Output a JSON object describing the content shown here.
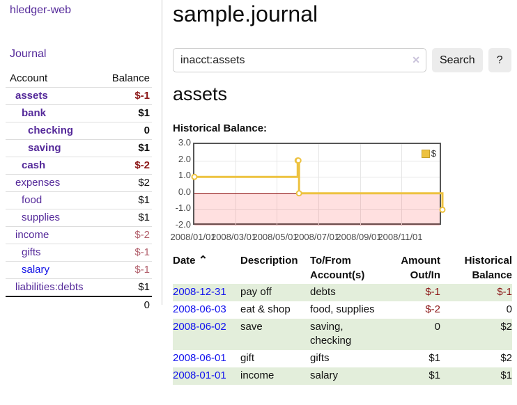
{
  "sidebar": {
    "app_title": "hledger-web",
    "journal_label": "Journal",
    "accounts_header": {
      "account": "Account",
      "balance": "Balance"
    },
    "accounts": [
      {
        "label": "assets",
        "depth": 0,
        "bold": true,
        "balance": "$-1",
        "balance_style": "negative",
        "link_style": "visited"
      },
      {
        "label": "bank",
        "depth": 1,
        "bold": true,
        "balance": "$1",
        "balance_style": "normal",
        "link_style": "visited"
      },
      {
        "label": "checking",
        "depth": 2,
        "bold": true,
        "balance": "0",
        "balance_style": "normal",
        "link_style": "visited"
      },
      {
        "label": "saving",
        "depth": 2,
        "bold": true,
        "balance": "$1",
        "balance_style": "normal",
        "link_style": "visited"
      },
      {
        "label": "cash",
        "depth": 1,
        "bold": true,
        "balance": "$-2",
        "balance_style": "negative",
        "link_style": "visited"
      },
      {
        "label": "expenses",
        "depth": 0,
        "bold": false,
        "balance": "$2",
        "balance_style": "normal",
        "link_style": "visited"
      },
      {
        "label": "food",
        "depth": 1,
        "bold": false,
        "balance": "$1",
        "balance_style": "normal",
        "link_style": "visited"
      },
      {
        "label": "supplies",
        "depth": 1,
        "bold": false,
        "balance": "$1",
        "balance_style": "normal",
        "link_style": "visited"
      },
      {
        "label": "income",
        "depth": 0,
        "bold": false,
        "balance": "$-2",
        "balance_style": "negative-soft",
        "link_style": "visited"
      },
      {
        "label": "gifts",
        "depth": 1,
        "bold": false,
        "balance": "$-1",
        "balance_style": "negative-soft",
        "link_style": "visited"
      },
      {
        "label": "salary",
        "depth": 1,
        "bold": false,
        "balance": "$-1",
        "balance_style": "negative-soft",
        "link_style": "unvisited"
      },
      {
        "label": "liabilities:debts",
        "depth": 0,
        "bold": false,
        "balance": "$1",
        "balance_style": "normal",
        "link_style": "visited"
      }
    ],
    "total": "0"
  },
  "main": {
    "title": "sample.journal",
    "search": {
      "value": "inacct:assets",
      "clear_icon": "✕",
      "button_label": "Search",
      "help_label": "?"
    },
    "account_heading": "assets",
    "chart_title": "Historical Balance:"
  },
  "chart_data": {
    "type": "line",
    "step": true,
    "title": "Historical Balance",
    "series": [
      {
        "name": "$",
        "points": [
          [
            "2008/01/01",
            1
          ],
          [
            "2008/06/01",
            2
          ],
          [
            "2008/06/02",
            2
          ],
          [
            "2008/06/03",
            0
          ],
          [
            "2008/12/31",
            -1
          ]
        ]
      }
    ],
    "x_min": "2008/01/01",
    "x_max": "2008/12/31",
    "ylim": [
      -2,
      3
    ],
    "y_ticks": [
      3.0,
      2.0,
      1.0,
      0.0,
      -1.0,
      -2.0
    ],
    "x_ticks": [
      "2008/01/01",
      "2008/03/01",
      "2008/05/01",
      "2008/07/01",
      "2008/09/01",
      "2008/11/01"
    ],
    "legend": {
      "label": "$",
      "position": "top-right"
    },
    "grid": true,
    "line_color": "#edc240",
    "marker_fill": "#ffffff",
    "zero_line_color": "#8b0000",
    "negative_region_fill": "rgba(255,0,0,0.12)"
  },
  "register": {
    "headers": [
      "Date",
      "Description",
      "To/From Account(s)",
      "Amount Out/In",
      "Historical Balance"
    ],
    "sort_icon": "⌃",
    "rows": [
      {
        "date": "2008-12-31",
        "description": "pay off",
        "accounts": [
          "debts"
        ],
        "amount": "$-1",
        "amount_negative": true,
        "balance": "$-1",
        "balance_negative": true,
        "stripe": true
      },
      {
        "date": "2008-06-03",
        "description": "eat & shop",
        "accounts": [
          "food, supplies"
        ],
        "amount": "$-2",
        "amount_negative": true,
        "balance": "0",
        "balance_negative": false,
        "stripe": false
      },
      {
        "date": "2008-06-02",
        "description": "save",
        "accounts": [
          "saving,",
          "checking"
        ],
        "amount": "0",
        "amount_negative": false,
        "balance": "$2",
        "balance_negative": false,
        "stripe": true
      },
      {
        "date": "2008-06-01",
        "description": "gift",
        "accounts": [
          "gifts"
        ],
        "amount": "$1",
        "amount_negative": false,
        "balance": "$2",
        "balance_negative": false,
        "stripe": false
      },
      {
        "date": "2008-01-01",
        "description": "income",
        "accounts": [
          "salary"
        ],
        "amount": "$1",
        "amount_negative": false,
        "balance": "$1",
        "balance_negative": false,
        "stripe": true
      }
    ]
  }
}
